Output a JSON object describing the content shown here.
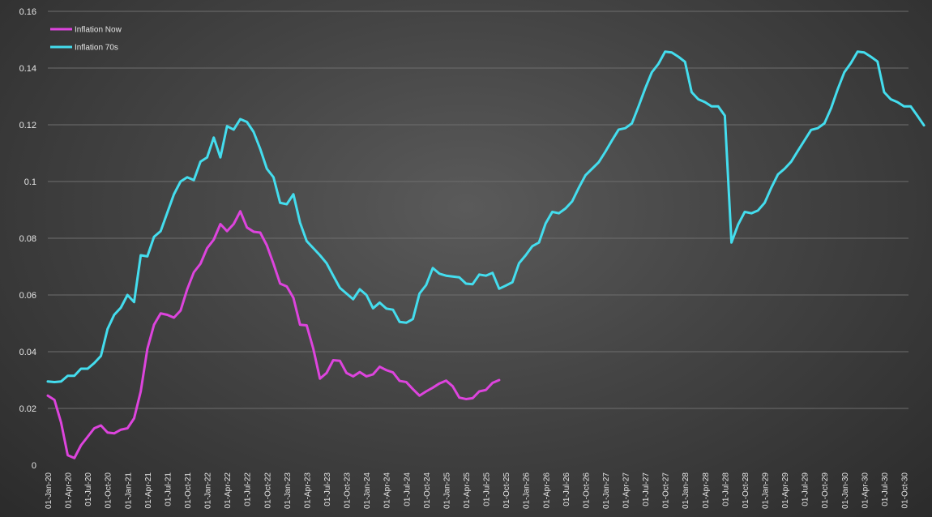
{
  "chart_data": {
    "type": "line",
    "title": "",
    "xlabel": "",
    "ylabel": "",
    "ylim": [
      0,
      0.16
    ],
    "yticks": [
      "0",
      "0.02",
      "0.04",
      "0.06",
      "0.08",
      "0.1",
      "0.12",
      "0.14",
      "0.16"
    ],
    "grid": true,
    "legend_position": "top-left",
    "x_start": "2020-01",
    "x_end": "2031-01",
    "x_tick_labels": [
      "01-Jan-20",
      "01-Apr-20",
      "01-Jul-20",
      "01-Oct-20",
      "01-Jan-21",
      "01-Apr-21",
      "01-Jul-21",
      "01-Oct-21",
      "01-Jan-22",
      "01-Apr-22",
      "01-Jul-22",
      "01-Oct-22",
      "01-Jan-23",
      "01-Apr-23",
      "01-Jul-23",
      "01-Oct-23",
      "01-Jan-24",
      "01-Apr-24",
      "01-Jul-24",
      "01-Oct-24",
      "01-Jan-25",
      "01-Apr-25",
      "01-Jul-25",
      "01-Oct-25",
      "01-Jan-26",
      "01-Apr-26",
      "01-Jul-26",
      "01-Oct-26",
      "01-Jan-27",
      "01-Apr-27",
      "01-Jul-27",
      "01-Oct-27",
      "01-Jan-28",
      "01-Apr-28",
      "01-Jul-28",
      "01-Oct-28",
      "01-Jan-29",
      "01-Apr-29",
      "01-Jul-29",
      "01-Oct-29",
      "01-Jan-30",
      "01-Apr-30",
      "01-Jul-30",
      "01-Oct-30"
    ],
    "series": [
      {
        "name": "Inflation Now",
        "color": "#dd44dd",
        "values": [
          0.0245,
          0.023,
          0.015,
          0.0035,
          0.0025,
          0.007,
          0.01,
          0.013,
          0.014,
          0.0115,
          0.0112,
          0.0125,
          0.013,
          0.0165,
          0.026,
          0.041,
          0.0495,
          0.0535,
          0.053,
          0.052,
          0.0545,
          0.062,
          0.068,
          0.071,
          0.0765,
          0.0795,
          0.085,
          0.0825,
          0.085,
          0.0895,
          0.0838,
          0.0823,
          0.082,
          0.0775,
          0.071,
          0.064,
          0.063,
          0.059,
          0.0495,
          0.0493,
          0.041,
          0.0305,
          0.0325,
          0.037,
          0.0368,
          0.0325,
          0.0313,
          0.0328,
          0.0313,
          0.032,
          0.0347,
          0.0335,
          0.0327,
          0.0297,
          0.0293,
          0.0268,
          0.0245,
          0.026,
          0.0273,
          0.0288,
          0.0298,
          0.0278,
          0.0238,
          0.0233,
          0.0236,
          0.026,
          0.0265,
          0.029,
          0.03
        ]
      },
      {
        "name": "Inflation 70s",
        "color": "#44ddee",
        "values": [
          0.0295,
          0.0293,
          0.0295,
          0.0315,
          0.0315,
          0.034,
          0.034,
          0.036,
          0.0385,
          0.048,
          0.053,
          0.0555,
          0.06,
          0.0575,
          0.074,
          0.0736,
          0.0805,
          0.0825,
          0.089,
          0.0955,
          0.1,
          0.1015,
          0.1005,
          0.107,
          0.1085,
          0.1155,
          0.1085,
          0.1195,
          0.1183,
          0.122,
          0.121,
          0.1175,
          0.1115,
          0.1045,
          0.1015,
          0.0925,
          0.092,
          0.0955,
          0.0855,
          0.079,
          0.0765,
          0.074,
          0.0712,
          0.0668,
          0.0625,
          0.0605,
          0.0585,
          0.062,
          0.06,
          0.0553,
          0.0573,
          0.0552,
          0.0548,
          0.0505,
          0.0502,
          0.0515,
          0.0605,
          0.0635,
          0.0695,
          0.0675,
          0.0668,
          0.0665,
          0.0662,
          0.064,
          0.0638,
          0.0672,
          0.0668,
          0.0678,
          0.0622,
          0.0633,
          0.0645,
          0.0712,
          0.074,
          0.0772,
          0.0785,
          0.0852,
          0.0893,
          0.0888,
          0.0905,
          0.093,
          0.0978,
          0.1022,
          0.1045,
          0.1068,
          0.1105,
          0.1145,
          0.1183,
          0.1188,
          0.1205,
          0.1265,
          0.1328,
          0.1385,
          0.1415,
          0.1458,
          0.1455,
          0.144,
          0.1422,
          0.1315,
          0.129,
          0.128,
          0.1265,
          0.1265,
          0.1232,
          0.0785,
          0.0848,
          0.0893,
          0.0888,
          0.0898,
          0.0925,
          0.0978,
          0.1025,
          0.1045,
          0.107,
          0.1108,
          0.1145,
          0.1182,
          0.1188,
          0.1205,
          0.1258,
          0.1325,
          0.1385,
          0.1418,
          0.1458,
          0.1455,
          0.144,
          0.1423,
          0.1315,
          0.129,
          0.128,
          0.1265,
          0.1265,
          0.1232,
          0.1198
        ]
      }
    ]
  }
}
